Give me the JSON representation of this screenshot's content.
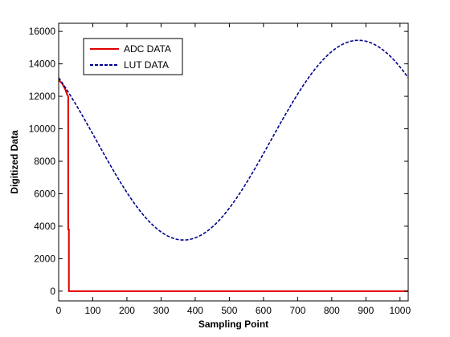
{
  "chart_data": {
    "type": "line",
    "xlabel": "Sampling Point",
    "ylabel": "Digitized Data",
    "xlim": [
      0,
      1024
    ],
    "ylim": [
      -600,
      16500
    ],
    "x_ticks": [
      0,
      100,
      200,
      300,
      400,
      500,
      600,
      700,
      800,
      900,
      1000
    ],
    "y_ticks": [
      0,
      2000,
      4000,
      6000,
      8000,
      10000,
      12000,
      14000,
      16000
    ],
    "grid": false,
    "legend_position": "top-left",
    "series": [
      {
        "name": "ADC DATA",
        "color": "#e00000",
        "style": "solid",
        "x": [
          0,
          10,
          20,
          25,
          28,
          28,
          30,
          30,
          1024
        ],
        "y": [
          13000,
          12800,
          12400,
          12100,
          12000,
          3800,
          3800,
          0,
          0
        ]
      },
      {
        "name": "LUT DATA",
        "color": "#00008b",
        "style": "dashed",
        "sine": {
          "mean": 9300,
          "amplitude": 6150,
          "period": 1024,
          "min_at": 366
        },
        "x": [
          0,
          50,
          100,
          150,
          200,
          250,
          300,
          366,
          400,
          450,
          500,
          550,
          600,
          650,
          700,
          750,
          800,
          878,
          900,
          950,
          1000,
          1024
        ],
        "y": [
          12980,
          11320,
          9500,
          7620,
          5830,
          4400,
          3480,
          3150,
          3300,
          3880,
          4900,
          6330,
          8050,
          9900,
          11750,
          13350,
          14600,
          15450,
          15380,
          14800,
          13630,
          13000
        ]
      }
    ]
  }
}
